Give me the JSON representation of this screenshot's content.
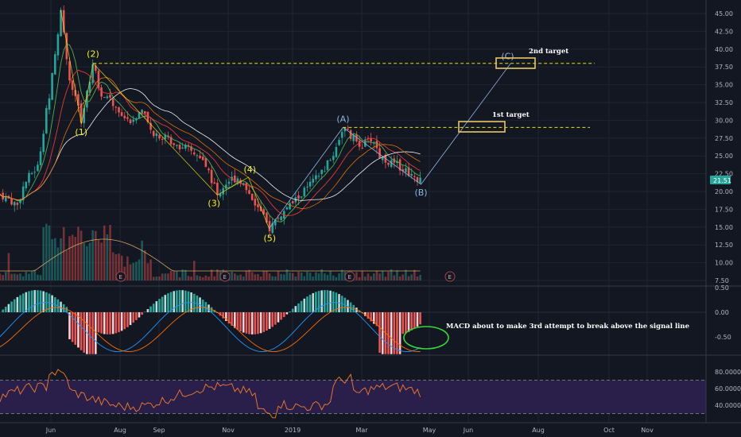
{
  "colors": {
    "background": "#131722",
    "grid": "#1f2433",
    "up": "#26a69a",
    "down": "#ef5350",
    "wave_line": "#f5f511",
    "corrective_line": "#8fb4e0",
    "target_dash": "#e6e600",
    "ema_fast": "#4caf50",
    "ema_mid": "#e53935",
    "sma_slow": "#f0f0f0",
    "orange_ma": "#f57c00",
    "rsi_line": "#f57c2a",
    "rsi_band": "#2a1f4a",
    "macd_line": "#2196f3",
    "signal_line": "#ff6d00",
    "hist_pos": "#b2dfdb",
    "hist_neg": "#ffcdd2",
    "highlight_ellipse": "#37d63b",
    "price_badge": "#26a69a"
  },
  "annotations": {
    "second_target": "2nd target",
    "first_target": "1st target",
    "macd_note": "MACD about to make 3rd attempt to break above the signal line"
  },
  "last_price": "21.51",
  "earnings_badge": "E",
  "chart_data": [
    {
      "id": "price",
      "type": "line",
      "x_labels": [
        "Jun",
        "Aug",
        "Sep",
        "Nov",
        "2019",
        "Mar",
        "May",
        "Jun",
        "Aug",
        "Oct",
        "Nov"
      ],
      "y_ticks": [
        "45.00",
        "42.50",
        "40.00",
        "37.50",
        "35.00",
        "32.50",
        "30.00",
        "27.50",
        "25.00",
        "22.50",
        "20.00",
        "17.50",
        "15.00",
        "12.50",
        "10.00",
        "7.50"
      ],
      "ylim": [
        7.5,
        45
      ],
      "approx_close_path": [
        [
          0,
          19.6
        ],
        [
          0.012,
          19.0
        ],
        [
          0.025,
          18.0
        ],
        [
          0.035,
          21.0
        ],
        [
          0.045,
          22.5
        ],
        [
          0.055,
          23.5
        ],
        [
          0.065,
          30.0
        ],
        [
          0.072,
          34.0
        ],
        [
          0.08,
          39.0
        ],
        [
          0.088,
          45.5
        ],
        [
          0.095,
          40.0
        ],
        [
          0.102,
          35.0
        ],
        [
          0.11,
          33.0
        ],
        [
          0.118,
          30.0
        ],
        [
          0.127,
          34.0
        ],
        [
          0.135,
          38.0
        ],
        [
          0.145,
          34.0
        ],
        [
          0.16,
          33.0
        ],
        [
          0.175,
          31.0
        ],
        [
          0.19,
          29.0
        ],
        [
          0.205,
          31.5
        ],
        [
          0.22,
          28.5
        ],
        [
          0.24,
          27.5
        ],
        [
          0.26,
          26.5
        ],
        [
          0.28,
          25.5
        ],
        [
          0.3,
          23.5
        ],
        [
          0.315,
          19.5
        ],
        [
          0.33,
          21.5
        ],
        [
          0.345,
          22.0
        ],
        [
          0.36,
          20.0
        ],
        [
          0.375,
          17.5
        ],
        [
          0.39,
          14.8
        ],
        [
          0.405,
          16.5
        ],
        [
          0.42,
          18.0
        ],
        [
          0.44,
          20.0
        ],
        [
          0.46,
          22.0
        ],
        [
          0.48,
          24.5
        ],
        [
          0.497,
          29.0
        ],
        [
          0.51,
          27.5
        ],
        [
          0.525,
          26.5
        ],
        [
          0.54,
          27.5
        ],
        [
          0.55,
          25.0
        ],
        [
          0.565,
          24.0
        ],
        [
          0.58,
          23.5
        ],
        [
          0.595,
          22.5
        ],
        [
          0.61,
          21.5
        ]
      ],
      "waves": [
        {
          "label": "(1)",
          "x": 0.118,
          "y": 29.5
        },
        {
          "label": "(2)",
          "x": 0.135,
          "y": 38.0
        },
        {
          "label": "(3)",
          "x": 0.315,
          "y": 19.5
        },
        {
          "label": "(4)",
          "x": 0.36,
          "y": 22.0
        },
        {
          "label": "(5)",
          "x": 0.39,
          "y": 14.8
        },
        {
          "label": "(A)",
          "x": 0.497,
          "y": 29.0
        },
        {
          "label": "(B)",
          "x": 0.61,
          "y": 21.0
        },
        {
          "label": "(C)",
          "x": 0.74,
          "y": 38.0
        }
      ],
      "targets": [
        {
          "name": "1st target",
          "price": 29.0
        },
        {
          "name": "2nd target",
          "price": 38.0
        }
      ]
    },
    {
      "id": "macd",
      "type": "bar",
      "y_ticks": [
        "0.50",
        "0.00",
        "-0.50"
      ],
      "ylim": [
        -1.0,
        0.6
      ]
    },
    {
      "id": "rsi",
      "type": "line",
      "y_ticks": [
        "80.0000",
        "60.0000",
        "40.0000"
      ],
      "ylim": [
        22,
        90
      ],
      "bands": [
        30,
        70
      ]
    }
  ]
}
